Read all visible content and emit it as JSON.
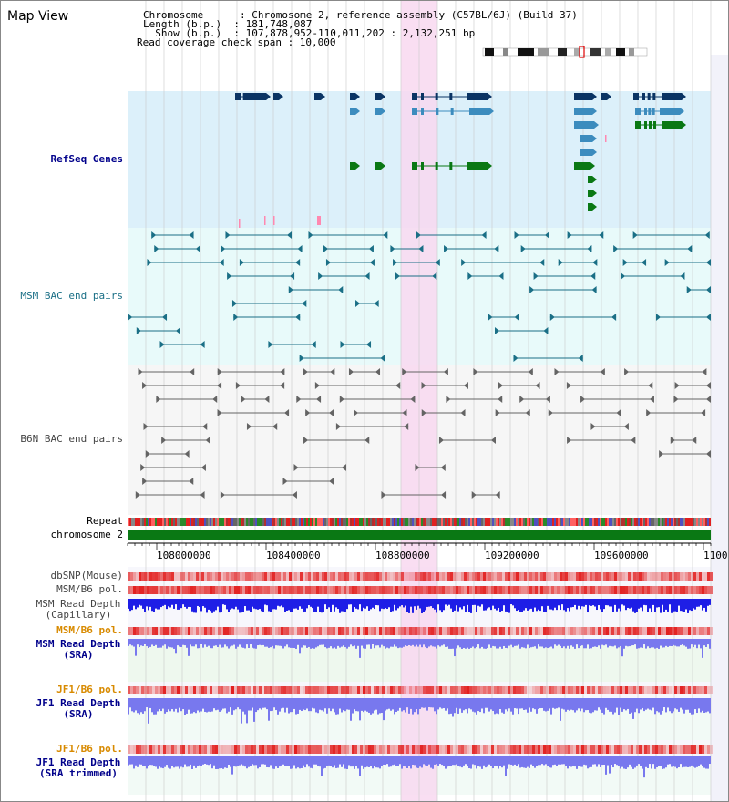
{
  "header": {
    "title": "Map View",
    "info_lines": [
      "Chromosome      : Chromosome 2, reference assembly (C57BL/6J) (Build 37)",
      "Length (b.p.)  : 181,748,087",
      "  Show (b.p.)  : 107,878,952-110,011,202 : 2,132,251 bp",
      "Read coverage check span : 10,000"
    ]
  },
  "tracks": {
    "refseq": "RefSeq Genes",
    "msm_bac": "MSM BAC end pairs",
    "b6n_bac": "B6N BAC end pairs",
    "repeat": "Repeat",
    "chromosome": "chromosome 2",
    "dbsnp": "dbSNP(Mouse)",
    "msm_b6_pol": "MSM/B6 pol.",
    "msm_depth_cap_1": "MSM Read Depth",
    "msm_depth_cap_2": "(Capillary)",
    "msm_b6_pol_2": "MSM/B6 pol.",
    "msm_depth_sra_1": "MSM Read Depth",
    "msm_depth_sra_2": "(SRA)",
    "jf1_pol_1": "JF1/B6 pol.",
    "jf1_depth_1": "JF1 Read Depth",
    "jf1_depth_1b": "(SRA)",
    "jf1_pol_2": "JF1/B6 pol.",
    "jf1_depth_2": "JF1 Read Depth",
    "jf1_depth_2b": "(SRA trimmed)"
  },
  "ruler": {
    "ticks": [
      "108000000",
      "108400000",
      "108800000",
      "109200000",
      "109600000",
      "1100"
    ]
  },
  "colors": {
    "refseq_bg": "#dcf0fa",
    "msm_bg": "#e8fafa",
    "b6n_bg": "#f6f6f6",
    "highlight": "#f8d8f0",
    "gene_dark": "#0a3464",
    "gene_mid": "#3c8cbe",
    "gene_green": "#0a7814",
    "msm_line": "#1a6f86",
    "b6n_line": "#646464",
    "chrom": "#0a7814",
    "depth_blue": "#1e1ee6",
    "depth_light": "#7878ee"
  }
}
